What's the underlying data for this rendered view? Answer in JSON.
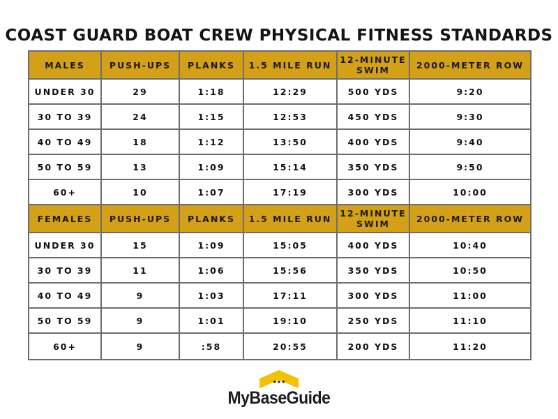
{
  "title": "COAST GUARD BOAT CREW PHYSICAL FITNESS STANDARDS",
  "columns": [
    "PUSH-UPS",
    "PLANKS",
    "1.5 MILE RUN",
    "12-MINUTE SWIM",
    "2000-METER ROW"
  ],
  "males": {
    "label": "MALES",
    "rows": [
      {
        "age": "UNDER 30",
        "pushups": "29",
        "planks": "1:18",
        "run": "12:29",
        "swim": "500 YDS",
        "row": "9:20"
      },
      {
        "age": "30 TO 39",
        "pushups": "24",
        "planks": "1:15",
        "run": "12:53",
        "swim": "450 YDS",
        "row": "9:30"
      },
      {
        "age": "40 TO 49",
        "pushups": "18",
        "planks": "1:12",
        "run": "13:50",
        "swim": "400 YDS",
        "row": "9:40"
      },
      {
        "age": "50 TO 59",
        "pushups": "13",
        "planks": "1:09",
        "run": "15:14",
        "swim": "350 YDS",
        "row": "9:50"
      },
      {
        "age": "60+",
        "pushups": "10",
        "planks": "1:07",
        "run": "17:19",
        "swim": "300 YDS",
        "row": "10:00"
      }
    ]
  },
  "females": {
    "label": "FEMALES",
    "rows": [
      {
        "age": "UNDER 30",
        "pushups": "15",
        "planks": "1:09",
        "run": "15:05",
        "swim": "400 YDS",
        "row": "10:40"
      },
      {
        "age": "30 TO 39",
        "pushups": "11",
        "planks": "1:06",
        "run": "15:56",
        "swim": "350 YDS",
        "row": "10:50"
      },
      {
        "age": "40 TO 49",
        "pushups": "9",
        "planks": "1:03",
        "run": "17:11",
        "swim": "300 YDS",
        "row": "11:00"
      },
      {
        "age": "50 TO 59",
        "pushups": "9",
        "planks": "1:01",
        "run": "19:10",
        "swim": "250 YDS",
        "row": "11:10"
      },
      {
        "age": "60+",
        "pushups": "9",
        "planks": ":58",
        "run": "20:55",
        "swim": "200 YDS",
        "row": "11:20"
      }
    ]
  },
  "logo": {
    "text": "MyBaseGuide"
  },
  "colors": {
    "header_fill": "#d4a017",
    "border": "#6d6d6d",
    "logo_accent": "#f2c200"
  }
}
